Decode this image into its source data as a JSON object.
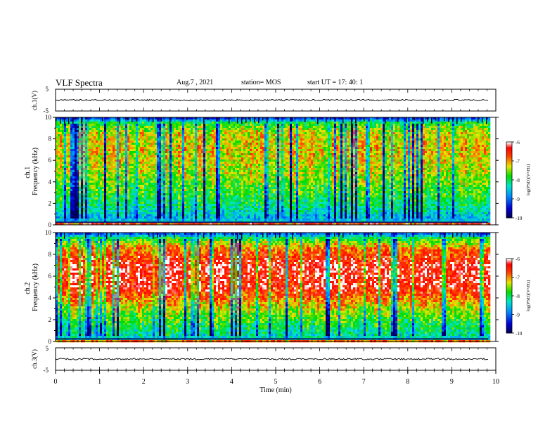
{
  "header": {
    "title": "VLF Spectra",
    "date": "Aug.7 , 2021",
    "station": "station= MOS",
    "start_ut": "start UT = 17: 40: 1"
  },
  "colors": {
    "spectrogram_low": "#000080",
    "spectrogram_mid": "#00e000",
    "spectrogram_high": "#ff0000",
    "spectrogram_peak": "#ffffff"
  },
  "chart_data": [
    {
      "id": "waveform-ch1",
      "type": "line",
      "ylabel": "ch.1(V)",
      "ylim": [
        -5,
        5
      ],
      "yticks": [
        "5",
        "-5"
      ],
      "xlim": [
        0,
        10
      ],
      "description_values": {
        "baseline_v": 0
      }
    },
    {
      "id": "spectrogram-ch1",
      "type": "heatmap",
      "ylabel": "ch.1\nFrequency (kHz)",
      "ylabel_lines": [
        "ch.1",
        "Frequency (kHz)"
      ],
      "ylim": [
        0,
        10
      ],
      "yticks": [
        "0",
        "2",
        "4",
        "6",
        "8",
        "10"
      ],
      "xlim": [
        0,
        10
      ],
      "data_end_min": 9.83,
      "colorbar": {
        "label": "log(PSD)(V²/Hz)",
        "ticks": [
          "-6",
          "-7",
          "-8",
          "-9",
          "-10"
        ],
        "range": [
          -10,
          -6
        ]
      },
      "band_profile_khz": [
        0.2,
        0.3,
        0.8,
        1.5,
        3.0,
        5.0,
        7.0,
        8.5,
        9.5,
        9.9
      ],
      "band_profile_level": [
        -6.5,
        -8.5,
        -8.6,
        -8.2,
        -7.8,
        -7.4,
        -7.2,
        -7.3,
        -7.9,
        -9.2
      ]
    },
    {
      "id": "spectrogram-ch2",
      "type": "heatmap",
      "ylabel": "ch.2\nFrequency (kHz)",
      "ylabel_lines": [
        "ch.2",
        "Frequency (kHz)"
      ],
      "ylim": [
        0,
        10
      ],
      "yticks": [
        "0",
        "2",
        "4",
        "6",
        "8",
        "10"
      ],
      "xlim": [
        0,
        10
      ],
      "data_end_min": 9.83,
      "colorbar": {
        "label": "log(PSD)(V²/Hz)",
        "ticks": [
          "-6",
          "-7",
          "-8",
          "-9",
          "-10"
        ],
        "range": [
          -10,
          -6
        ]
      },
      "band_profile_khz": [
        0.2,
        0.3,
        0.8,
        1.5,
        3.0,
        5.0,
        7.0,
        8.5,
        9.5,
        9.9
      ],
      "band_profile_level": [
        -6.8,
        -8.4,
        -8.2,
        -8.0,
        -7.4,
        -6.4,
        -6.3,
        -6.9,
        -7.9,
        -9.0
      ]
    },
    {
      "id": "waveform-ch3",
      "type": "line",
      "ylabel": "ch.3(V)",
      "ylim": [
        -5,
        5
      ],
      "yticks": [
        "5",
        "-5"
      ],
      "xlim": [
        0,
        10
      ],
      "description_values": {
        "baseline_v": 0
      }
    }
  ],
  "xaxis": {
    "label": "Time (min)",
    "ticks": [
      "0",
      "1",
      "2",
      "3",
      "4",
      "5",
      "6",
      "7",
      "8",
      "9",
      "10"
    ]
  }
}
